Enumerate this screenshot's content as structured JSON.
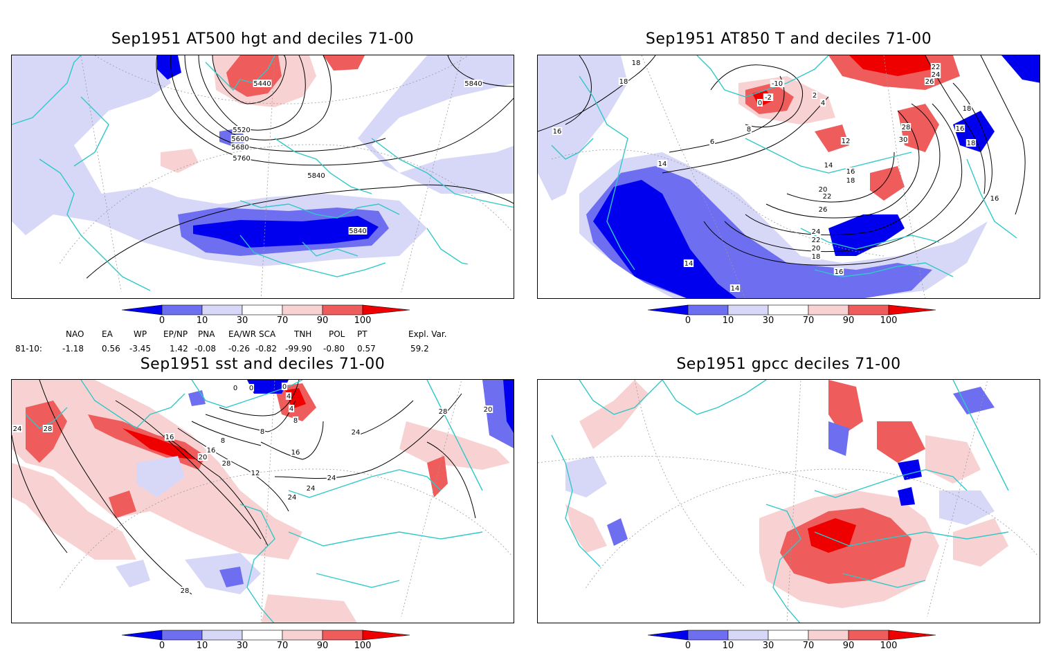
{
  "panels": [
    {
      "title": "Sep1951 AT500 hgt and deciles 71-00",
      "labels": [
        "5440",
        "5840",
        "5520",
        "5600",
        "5680",
        "5760",
        "5840",
        "5840"
      ]
    },
    {
      "title": "Sep1951 AT850 T and deciles 71-00",
      "labels": [
        "18",
        "18",
        "16",
        "14",
        "6",
        "8",
        "12",
        "14",
        "16",
        "18",
        "20",
        "22",
        "26",
        "24",
        "22",
        "20",
        "18",
        "16",
        "16",
        "18",
        "14",
        "14",
        "28",
        "30",
        "22",
        "24",
        "26",
        "-10",
        "-2",
        "0",
        "2",
        "4",
        "18",
        "16"
      ]
    },
    {
      "title": "Sep1951 sst and deciles 71-00",
      "labels": [
        "24",
        "28",
        "16",
        "8",
        "8",
        "20",
        "16",
        "12",
        "16",
        "24",
        "24",
        "24",
        "28",
        "28",
        "20",
        "24",
        "28",
        "0",
        "0",
        "0",
        "4",
        "4",
        "8"
      ]
    },
    {
      "title": "Sep1951 gpcc deciles 71-00",
      "labels": []
    }
  ],
  "colorbar": {
    "ticks": [
      "0",
      "10",
      "30",
      "70",
      "90",
      "100"
    ],
    "colors": [
      "#0000ee",
      "#6e6ef0",
      "#d7d7f8",
      "#ffffff",
      "#f8d2d2",
      "#ee5c5c",
      "#ee0000"
    ]
  },
  "indices": {
    "headers": [
      "NAO",
      "EA",
      "WP",
      "EP/NP",
      "PNA",
      "EA/WR",
      "SCA",
      "TNH",
      "POL",
      "PT",
      "Expl. Var."
    ],
    "row_label": "81-10:",
    "values": [
      "-1.18",
      "0.56",
      "-3.45",
      "1.42",
      "-0.08",
      "-0.26",
      "-0.82",
      "-99.90",
      "-0.80",
      "0.57",
      "59.2"
    ]
  },
  "colors": {
    "coast": "#30c8c8",
    "deep_blue": "#0000ee",
    "mid_blue": "#6e6ef0",
    "light_blue": "#d7d7f8",
    "light_red": "#f8d2d2",
    "mid_red": "#ee5c5c",
    "deep_red": "#ee0000"
  }
}
